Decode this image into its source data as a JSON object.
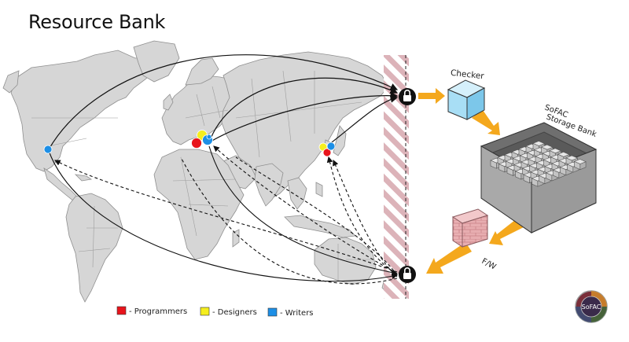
{
  "title": "Resource Bank",
  "labels": {
    "checker": "Checker",
    "storage_line1": "SoFAC",
    "storage_line2": "Storage Bank",
    "firewall": "F/W",
    "logo": "SoFAC"
  },
  "legend": [
    {
      "color": "#e8141b",
      "label": "- Programmers"
    },
    {
      "color": "#f5ee1e",
      "label": "- Designers"
    },
    {
      "color": "#1d8fe6",
      "label": "- Writers"
    }
  ],
  "colors": {
    "map_land": "#d6d6d6",
    "map_border": "#9a9a9a",
    "arrow_orange": "#f4a81d",
    "wall_stripe": "#d9aeb4",
    "cube_blue": "#a8def5",
    "brick": "#e9a9ad"
  },
  "icons": [
    "lock-icon",
    "cube-icon",
    "storage-bank-icon",
    "brick-wall-icon"
  ]
}
